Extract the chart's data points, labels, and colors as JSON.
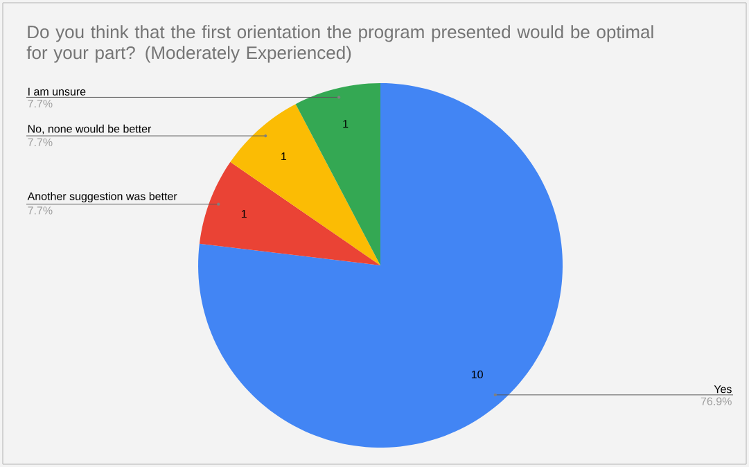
{
  "chart_data": {
    "type": "pie",
    "title": "Do you think that the first orientation the program presented would be optimal for your part? (Moderately Experienced)",
    "categories": [
      "Yes",
      "Another suggestion was better",
      "No, none would be better",
      "I am unsure"
    ],
    "values": [
      76.9,
      7.7,
      7.7,
      7.7
    ],
    "colors": [
      "#4285f4",
      "#ea4335",
      "#fbbc04",
      "#34a853"
    ],
    "value_labels": [
      "76.9%",
      "7.7%",
      "7.7%",
      "7.7%"
    ],
    "annotations": [
      {
        "text": "10",
        "x": "Yes"
      },
      {
        "text": "1",
        "x": "Another suggestion was better"
      },
      {
        "text": "1",
        "x": "No, none would be better"
      },
      {
        "text": "1",
        "x": "I am unsure"
      }
    ]
  }
}
